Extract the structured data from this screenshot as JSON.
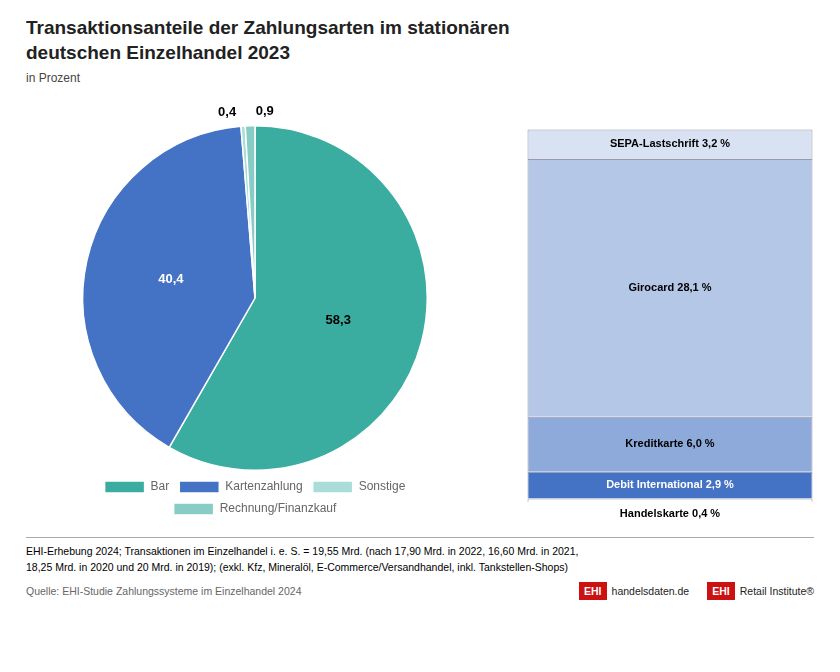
{
  "chart_data": [
    {
      "type": "pie",
      "title": "Transaktionsanteile der Zahlungsarten im stationären\ndeutschen Einzelhandel 2023",
      "subtitle": "in Prozent",
      "categories": [
        "Bar",
        "Kartenzahlung",
        "Sonstige",
        "Rechnung/Finanzkauf"
      ],
      "values": [
        58.3,
        40.4,
        0.4,
        0.9
      ],
      "value_labels": [
        "58,3",
        "40,4",
        "0,4",
        "0,9"
      ],
      "colors": [
        "#3AADA0",
        "#4472C4",
        "#AADDD8",
        "#88CCC6"
      ],
      "data_labels": true,
      "legend": "bottom",
      "annotations": [
        "EHI-Erhebung 2024; Transaktionen im Einzelhandel i. e. S. = 19,55 Mrd. (nach 17,90 Mrd. in 2022, 16,60 Mrd. in 2021,\n18,25 Mrd. in 2020 und 20 Mrd. in 2019); (exkl. Kfz, Mineralöl, E-Commerce/Versandhandel, inkl. Tankstellen-Shops)",
        "Quelle: EHI-Studie Zahlungssysteme im Einzelhandel 2024",
        "EHI",
        "handelsdaten.de",
        "EHI",
        "Retail Institute®"
      ]
    },
    {
      "type": "bar",
      "categories": [
        null
      ],
      "stacked": true,
      "data_labels": true,
      "tick_labels": false,
      "ylim": [
        -2.5,
        41.1
      ],
      "series": [
        {
          "name": "Handelskarte",
          "color": "#FFFFFF",
          "values": [
            0.4
          ],
          "data_labels": false
        },
        {
          "name": "Debit International",
          "color": "#4472C4",
          "values": [
            2.9
          ],
          "value_labels": [
            "2,9 %"
          ]
        },
        {
          "name": "Kreditkarte",
          "color": "#8EAADB",
          "values": [
            6.0
          ],
          "value_labels": [
            "6,0 %"
          ]
        },
        {
          "name": "Girocard",
          "color": "#B4C7E7",
          "values": [
            28.1
          ],
          "value_labels": [
            "28,1 %"
          ]
        },
        {
          "name": "SEPA-Lastschrift",
          "color": "#D9E2F3",
          "values": [
            3.2
          ],
          "value_labels": [
            "3,2 %"
          ]
        }
      ],
      "annotations": [
        "Handelskarte 0,4 %"
      ]
    }
  ]
}
